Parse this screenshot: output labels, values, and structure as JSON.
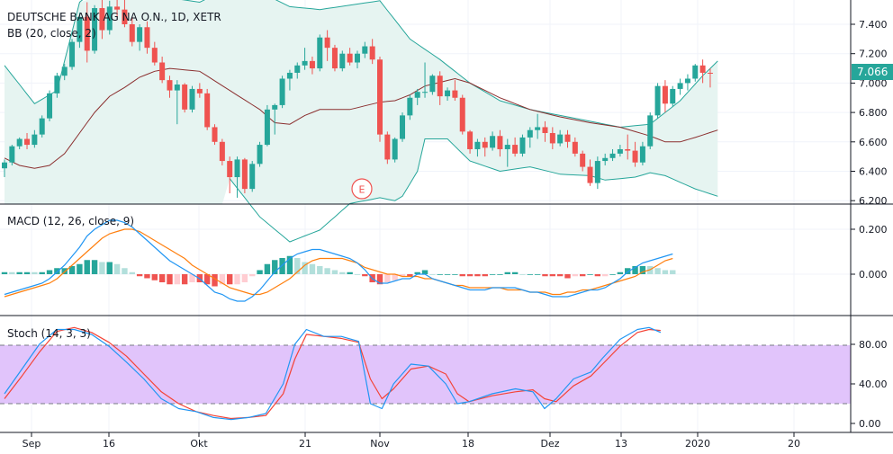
{
  "chart_data": {
    "type": "candlestick",
    "header": {
      "symbol_line": "DEUTSCHE BANK AG NA O.N., 1D, XETR",
      "bb_label": "BB (20, close, 2)",
      "macd_label": "MACD (12, 26, close, 9)",
      "stoch_label": "Stoch (14, 3, 3)"
    },
    "last_price_label": "7.066",
    "event_marker": "E",
    "x_ticks": [
      "Sep",
      "16",
      "Okt",
      "21",
      "Nov",
      "18",
      "Dez",
      "13",
      "2020",
      "20"
    ],
    "price_axis": {
      "ticks": [
        "7.400",
        "7.200",
        "7.000",
        "6.800",
        "6.600",
        "6.400",
        "6.200"
      ],
      "range": [
        6.2,
        7.65
      ]
    },
    "macd_axis": {
      "ticks": [
        "0.200",
        "0.000"
      ],
      "range": [
        -0.14,
        0.28
      ]
    },
    "stoch_axis": {
      "ticks": [
        "80.00",
        "40.00",
        "0.00"
      ],
      "range": [
        -5,
        105
      ],
      "band": [
        20,
        80
      ]
    },
    "colors": {
      "up": "#26a69a",
      "down": "#ef5350",
      "bb_fill": "#e6f4f1",
      "bb_band": "#26a69a",
      "bb_basis": "#8b2f2f",
      "macd": "#2196f3",
      "signal": "#ff7f0e",
      "hist_up_strong": "#26a69a",
      "hist_up_weak": "#b2dfdb",
      "hist_dn_strong": "#ef5350",
      "hist_dn_weak": "#ffcdd2",
      "stoch_k": "#2196f3",
      "stoch_d": "#f44336",
      "stoch_band": "#e1c4fb",
      "price_label_bg": "#26a69a"
    },
    "candles": [
      {
        "o": 6.42,
        "h": 6.48,
        "l": 6.36,
        "c": 6.46
      },
      {
        "o": 6.46,
        "h": 6.58,
        "l": 6.44,
        "c": 6.57
      },
      {
        "o": 6.57,
        "h": 6.63,
        "l": 6.55,
        "c": 6.62
      },
      {
        "o": 6.62,
        "h": 6.66,
        "l": 6.55,
        "c": 6.58
      },
      {
        "o": 6.58,
        "h": 6.68,
        "l": 6.56,
        "c": 6.65
      },
      {
        "o": 6.65,
        "h": 6.78,
        "l": 6.63,
        "c": 6.76
      },
      {
        "o": 6.76,
        "h": 6.95,
        "l": 6.74,
        "c": 6.93
      },
      {
        "o": 6.93,
        "h": 7.07,
        "l": 6.9,
        "c": 7.05
      },
      {
        "o": 7.05,
        "h": 7.13,
        "l": 7.02,
        "c": 7.11
      },
      {
        "o": 7.11,
        "h": 7.3,
        "l": 7.09,
        "c": 7.28
      },
      {
        "o": 7.28,
        "h": 7.48,
        "l": 7.24,
        "c": 7.45
      },
      {
        "o": 7.45,
        "h": 7.55,
        "l": 7.14,
        "c": 7.22
      },
      {
        "o": 7.22,
        "h": 7.53,
        "l": 7.2,
        "c": 7.51
      },
      {
        "o": 7.51,
        "h": 7.58,
        "l": 7.3,
        "c": 7.36
      },
      {
        "o": 7.36,
        "h": 7.56,
        "l": 7.33,
        "c": 7.52
      },
      {
        "o": 7.52,
        "h": 7.62,
        "l": 7.45,
        "c": 7.5
      },
      {
        "o": 7.5,
        "h": 7.6,
        "l": 7.38,
        "c": 7.4
      },
      {
        "o": 7.4,
        "h": 7.45,
        "l": 7.25,
        "c": 7.28
      },
      {
        "o": 7.28,
        "h": 7.4,
        "l": 7.22,
        "c": 7.38
      },
      {
        "o": 7.38,
        "h": 7.42,
        "l": 7.2,
        "c": 7.24
      },
      {
        "o": 7.24,
        "h": 7.28,
        "l": 7.12,
        "c": 7.14
      },
      {
        "o": 7.14,
        "h": 7.18,
        "l": 7.0,
        "c": 7.02
      },
      {
        "o": 7.02,
        "h": 7.05,
        "l": 6.9,
        "c": 6.95
      },
      {
        "o": 6.95,
        "h": 7.02,
        "l": 6.72,
        "c": 6.99
      },
      {
        "o": 6.99,
        "h": 7.0,
        "l": 6.8,
        "c": 6.82
      },
      {
        "o": 6.82,
        "h": 6.98,
        "l": 6.8,
        "c": 6.96
      },
      {
        "o": 6.96,
        "h": 7.0,
        "l": 6.9,
        "c": 6.93
      },
      {
        "o": 6.93,
        "h": 6.96,
        "l": 6.68,
        "c": 6.7
      },
      {
        "o": 6.7,
        "h": 6.72,
        "l": 6.58,
        "c": 6.6
      },
      {
        "o": 6.6,
        "h": 6.62,
        "l": 6.44,
        "c": 6.47
      },
      {
        "o": 6.47,
        "h": 6.5,
        "l": 6.25,
        "c": 6.36
      },
      {
        "o": 6.36,
        "h": 6.5,
        "l": 6.22,
        "c": 6.48
      },
      {
        "o": 6.48,
        "h": 6.49,
        "l": 6.25,
        "c": 6.28
      },
      {
        "o": 6.28,
        "h": 6.47,
        "l": 6.26,
        "c": 6.45
      },
      {
        "o": 6.45,
        "h": 6.6,
        "l": 6.43,
        "c": 6.58
      },
      {
        "o": 6.58,
        "h": 6.85,
        "l": 6.57,
        "c": 6.82
      },
      {
        "o": 6.82,
        "h": 6.86,
        "l": 6.65,
        "c": 6.85
      },
      {
        "o": 6.85,
        "h": 7.05,
        "l": 6.83,
        "c": 7.03
      },
      {
        "o": 7.03,
        "h": 7.09,
        "l": 6.95,
        "c": 7.07
      },
      {
        "o": 7.07,
        "h": 7.14,
        "l": 7.03,
        "c": 7.12
      },
      {
        "o": 7.12,
        "h": 7.24,
        "l": 7.09,
        "c": 7.15
      },
      {
        "o": 7.15,
        "h": 7.18,
        "l": 7.06,
        "c": 7.1
      },
      {
        "o": 7.1,
        "h": 7.33,
        "l": 7.08,
        "c": 7.31
      },
      {
        "o": 7.31,
        "h": 7.36,
        "l": 7.15,
        "c": 7.24
      },
      {
        "o": 7.24,
        "h": 7.26,
        "l": 7.08,
        "c": 7.1
      },
      {
        "o": 7.1,
        "h": 7.22,
        "l": 7.08,
        "c": 7.2
      },
      {
        "o": 7.2,
        "h": 7.24,
        "l": 7.12,
        "c": 7.14
      },
      {
        "o": 7.14,
        "h": 7.22,
        "l": 7.1,
        "c": 7.2
      },
      {
        "o": 7.2,
        "h": 7.28,
        "l": 7.17,
        "c": 7.25
      },
      {
        "o": 7.25,
        "h": 7.3,
        "l": 7.13,
        "c": 7.16
      },
      {
        "o": 7.16,
        "h": 7.18,
        "l": 6.6,
        "c": 6.65
      },
      {
        "o": 6.65,
        "h": 6.67,
        "l": 6.45,
        "c": 6.48
      },
      {
        "o": 6.48,
        "h": 6.63,
        "l": 6.46,
        "c": 6.62
      },
      {
        "o": 6.62,
        "h": 6.8,
        "l": 6.6,
        "c": 6.78
      },
      {
        "o": 6.78,
        "h": 6.92,
        "l": 6.75,
        "c": 6.9
      },
      {
        "o": 6.9,
        "h": 6.96,
        "l": 6.85,
        "c": 6.94
      },
      {
        "o": 6.94,
        "h": 7.14,
        "l": 6.9,
        "c": 6.94
      },
      {
        "o": 6.94,
        "h": 7.06,
        "l": 6.92,
        "c": 7.05
      },
      {
        "o": 7.05,
        "h": 7.08,
        "l": 6.85,
        "c": 6.91
      },
      {
        "o": 6.91,
        "h": 6.97,
        "l": 6.88,
        "c": 6.95
      },
      {
        "o": 6.95,
        "h": 7.02,
        "l": 6.88,
        "c": 6.9
      },
      {
        "o": 6.9,
        "h": 6.92,
        "l": 6.65,
        "c": 6.67
      },
      {
        "o": 6.67,
        "h": 6.68,
        "l": 6.52,
        "c": 6.55
      },
      {
        "o": 6.55,
        "h": 6.62,
        "l": 6.5,
        "c": 6.6
      },
      {
        "o": 6.6,
        "h": 6.63,
        "l": 6.5,
        "c": 6.56
      },
      {
        "o": 6.56,
        "h": 6.67,
        "l": 6.54,
        "c": 6.64
      },
      {
        "o": 6.64,
        "h": 6.68,
        "l": 6.5,
        "c": 6.55
      },
      {
        "o": 6.55,
        "h": 6.62,
        "l": 6.43,
        "c": 6.58
      },
      {
        "o": 6.58,
        "h": 6.63,
        "l": 6.5,
        "c": 6.52
      },
      {
        "o": 6.52,
        "h": 6.65,
        "l": 6.5,
        "c": 6.63
      },
      {
        "o": 6.63,
        "h": 6.7,
        "l": 6.56,
        "c": 6.68
      },
      {
        "o": 6.68,
        "h": 6.79,
        "l": 6.62,
        "c": 6.7
      },
      {
        "o": 6.7,
        "h": 6.74,
        "l": 6.6,
        "c": 6.66
      },
      {
        "o": 6.66,
        "h": 6.7,
        "l": 6.55,
        "c": 6.59
      },
      {
        "o": 6.59,
        "h": 6.68,
        "l": 6.57,
        "c": 6.65
      },
      {
        "o": 6.65,
        "h": 6.68,
        "l": 6.56,
        "c": 6.6
      },
      {
        "o": 6.6,
        "h": 6.63,
        "l": 6.5,
        "c": 6.52
      },
      {
        "o": 6.52,
        "h": 6.54,
        "l": 6.4,
        "c": 6.43
      },
      {
        "o": 6.43,
        "h": 6.48,
        "l": 6.3,
        "c": 6.32
      },
      {
        "o": 6.32,
        "h": 6.5,
        "l": 6.28,
        "c": 6.47
      },
      {
        "o": 6.47,
        "h": 6.52,
        "l": 6.44,
        "c": 6.49
      },
      {
        "o": 6.49,
        "h": 6.55,
        "l": 6.47,
        "c": 6.52
      },
      {
        "o": 6.52,
        "h": 6.58,
        "l": 6.5,
        "c": 6.55
      },
      {
        "o": 6.55,
        "h": 6.65,
        "l": 6.48,
        "c": 6.54
      },
      {
        "o": 6.54,
        "h": 6.6,
        "l": 6.43,
        "c": 6.46
      },
      {
        "o": 6.46,
        "h": 6.6,
        "l": 6.44,
        "c": 6.57
      },
      {
        "o": 6.57,
        "h": 6.8,
        "l": 6.55,
        "c": 6.78
      },
      {
        "o": 6.78,
        "h": 7.0,
        "l": 6.76,
        "c": 6.98
      },
      {
        "o": 6.98,
        "h": 7.02,
        "l": 6.8,
        "c": 6.86
      },
      {
        "o": 6.86,
        "h": 6.98,
        "l": 6.84,
        "c": 6.96
      },
      {
        "o": 6.96,
        "h": 7.03,
        "l": 6.92,
        "c": 7.0
      },
      {
        "o": 7.0,
        "h": 7.06,
        "l": 6.95,
        "c": 7.03
      },
      {
        "o": 7.03,
        "h": 7.13,
        "l": 7.01,
        "c": 7.12
      },
      {
        "o": 7.12,
        "h": 7.16,
        "l": 7.0,
        "c": 7.07
      },
      {
        "o": 7.07,
        "h": 7.1,
        "l": 6.97,
        "c": 7.066
      }
    ],
    "bb_upper": [
      [
        0,
        7.12
      ],
      [
        4,
        6.86
      ],
      [
        7,
        6.95
      ],
      [
        10,
        7.55
      ],
      [
        14,
        7.72
      ],
      [
        18,
        7.68
      ],
      [
        22,
        7.58
      ],
      [
        26,
        7.55
      ],
      [
        30,
        7.65
      ],
      [
        34,
        7.62
      ],
      [
        38,
        7.52
      ],
      [
        42,
        7.5
      ],
      [
        46,
        7.53
      ],
      [
        50,
        7.56
      ],
      [
        54,
        7.3
      ],
      [
        58,
        7.16
      ],
      [
        62,
        7.0
      ],
      [
        66,
        6.88
      ],
      [
        70,
        6.82
      ],
      [
        74,
        6.78
      ],
      [
        78,
        6.74
      ],
      [
        82,
        6.7
      ],
      [
        86,
        6.72
      ],
      [
        90,
        6.88
      ],
      [
        93,
        7.05
      ],
      [
        95,
        7.15
      ]
    ],
    "bb_lower": [
      [
        30,
        6.35
      ],
      [
        34,
        6.09
      ],
      [
        38,
        5.92
      ],
      [
        42,
        6.0
      ],
      [
        46,
        6.18
      ],
      [
        50,
        6.22
      ],
      [
        52,
        6.2
      ],
      [
        53,
        6.23
      ],
      [
        55,
        6.4
      ],
      [
        56,
        6.62
      ],
      [
        59,
        6.62
      ],
      [
        62,
        6.47
      ],
      [
        66,
        6.4
      ],
      [
        70,
        6.43
      ],
      [
        74,
        6.38
      ],
      [
        78,
        6.37
      ],
      [
        80,
        6.34
      ],
      [
        84,
        6.36
      ],
      [
        86,
        6.39
      ],
      [
        88,
        6.37
      ],
      [
        92,
        6.28
      ],
      [
        95,
        6.23
      ]
    ],
    "bb_basis": [
      [
        0,
        6.49
      ],
      [
        2,
        6.44
      ],
      [
        4,
        6.42
      ],
      [
        6,
        6.44
      ],
      [
        8,
        6.52
      ],
      [
        10,
        6.66
      ],
      [
        12,
        6.8
      ],
      [
        14,
        6.91
      ],
      [
        16,
        6.97
      ],
      [
        18,
        7.04
      ],
      [
        20,
        7.08
      ],
      [
        22,
        7.1
      ],
      [
        26,
        7.08
      ],
      [
        30,
        6.95
      ],
      [
        34,
        6.82
      ],
      [
        36,
        6.73
      ],
      [
        38,
        6.72
      ],
      [
        40,
        6.78
      ],
      [
        42,
        6.82
      ],
      [
        46,
        6.82
      ],
      [
        50,
        6.87
      ],
      [
        52,
        6.88
      ],
      [
        54,
        6.92
      ],
      [
        56,
        6.98
      ],
      [
        60,
        7.03
      ],
      [
        62,
        7.0
      ],
      [
        66,
        6.9
      ],
      [
        70,
        6.82
      ],
      [
        74,
        6.77
      ],
      [
        78,
        6.73
      ],
      [
        82,
        6.7
      ],
      [
        86,
        6.64
      ],
      [
        88,
        6.6
      ],
      [
        90,
        6.6
      ],
      [
        92,
        6.63
      ],
      [
        95,
        6.68
      ]
    ],
    "macd_line": [
      -0.09,
      -0.08,
      -0.07,
      -0.06,
      -0.05,
      -0.04,
      -0.02,
      0.01,
      0.04,
      0.08,
      0.12,
      0.17,
      0.2,
      0.22,
      0.24,
      0.24,
      0.23,
      0.21,
      0.18,
      0.15,
      0.12,
      0.09,
      0.06,
      0.04,
      0.02,
      0.0,
      -0.02,
      -0.05,
      -0.08,
      -0.09,
      -0.11,
      -0.12,
      -0.12,
      -0.1,
      -0.07,
      -0.03,
      0.01,
      0.04,
      0.07,
      0.09,
      0.1,
      0.11,
      0.11,
      0.1,
      0.09,
      0.08,
      0.07,
      0.05,
      0.02,
      -0.02,
      -0.04,
      -0.04,
      -0.03,
      -0.02,
      -0.02,
      0.0,
      0.0,
      -0.02,
      -0.03,
      -0.04,
      -0.05,
      -0.06,
      -0.07,
      -0.07,
      -0.07,
      -0.06,
      -0.06,
      -0.06,
      -0.06,
      -0.07,
      -0.08,
      -0.08,
      -0.09,
      -0.1,
      -0.1,
      -0.1,
      -0.09,
      -0.08,
      -0.07,
      -0.07,
      -0.06,
      -0.04,
      -0.02,
      0.01,
      0.03,
      0.05,
      0.06,
      0.07,
      0.08,
      0.09
    ],
    "signal_line": [
      -0.1,
      -0.09,
      -0.08,
      -0.07,
      -0.06,
      -0.05,
      -0.04,
      -0.02,
      0.01,
      0.04,
      0.07,
      0.1,
      0.13,
      0.16,
      0.18,
      0.19,
      0.2,
      0.2,
      0.19,
      0.17,
      0.15,
      0.13,
      0.11,
      0.09,
      0.07,
      0.04,
      0.02,
      0.0,
      -0.02,
      -0.04,
      -0.06,
      -0.07,
      -0.08,
      -0.09,
      -0.09,
      -0.08,
      -0.06,
      -0.04,
      -0.02,
      0.01,
      0.04,
      0.06,
      0.07,
      0.07,
      0.07,
      0.07,
      0.06,
      0.05,
      0.03,
      0.02,
      0.01,
      0.0,
      0.0,
      -0.01,
      -0.01,
      -0.01,
      -0.02,
      -0.02,
      -0.03,
      -0.04,
      -0.05,
      -0.05,
      -0.06,
      -0.06,
      -0.06,
      -0.06,
      -0.06,
      -0.07,
      -0.07,
      -0.07,
      -0.08,
      -0.08,
      -0.08,
      -0.09,
      -0.09,
      -0.08,
      -0.08,
      -0.07,
      -0.07,
      -0.06,
      -0.05,
      -0.04,
      -0.03,
      -0.02,
      -0.01,
      0.01,
      0.02,
      0.04,
      0.06,
      0.07
    ],
    "stoch_k": [
      [
        0,
        30
      ],
      [
        3,
        55
      ],
      [
        6,
        80
      ],
      [
        9,
        95
      ],
      [
        12,
        95
      ],
      [
        15,
        90
      ],
      [
        18,
        78
      ],
      [
        21,
        62
      ],
      [
        24,
        45
      ],
      [
        27,
        25
      ],
      [
        30,
        15
      ],
      [
        33,
        12
      ],
      [
        36,
        6
      ],
      [
        39,
        4
      ],
      [
        42,
        6
      ],
      [
        45,
        10
      ],
      [
        48,
        40
      ],
      [
        50,
        80
      ],
      [
        52,
        95
      ],
      [
        55,
        88
      ],
      [
        58,
        88
      ],
      [
        61,
        83
      ],
      [
        63,
        20
      ],
      [
        65,
        15
      ],
      [
        67,
        40
      ],
      [
        70,
        60
      ],
      [
        73,
        58
      ],
      [
        76,
        40
      ],
      [
        78,
        20
      ],
      [
        80,
        22
      ],
      [
        84,
        30
      ],
      [
        88,
        35
      ],
      [
        91,
        32
      ],
      [
        93,
        15
      ],
      [
        95,
        25
      ],
      [
        98,
        45
      ],
      [
        101,
        52
      ],
      [
        103,
        66
      ],
      [
        106,
        85
      ],
      [
        109,
        95
      ],
      [
        111,
        97
      ],
      [
        113,
        92
      ]
    ],
    "stoch_d": [
      [
        0,
        25
      ],
      [
        3,
        48
      ],
      [
        6,
        72
      ],
      [
        9,
        93
      ],
      [
        12,
        97
      ],
      [
        15,
        92
      ],
      [
        18,
        82
      ],
      [
        21,
        68
      ],
      [
        24,
        50
      ],
      [
        27,
        32
      ],
      [
        30,
        20
      ],
      [
        33,
        12
      ],
      [
        36,
        8
      ],
      [
        39,
        5
      ],
      [
        42,
        6
      ],
      [
        45,
        8
      ],
      [
        48,
        30
      ],
      [
        50,
        65
      ],
      [
        52,
        90
      ],
      [
        55,
        88
      ],
      [
        58,
        86
      ],
      [
        61,
        82
      ],
      [
        63,
        45
      ],
      [
        65,
        25
      ],
      [
        67,
        35
      ],
      [
        70,
        55
      ],
      [
        73,
        58
      ],
      [
        76,
        50
      ],
      [
        78,
        30
      ],
      [
        80,
        22
      ],
      [
        84,
        28
      ],
      [
        88,
        32
      ],
      [
        91,
        34
      ],
      [
        93,
        25
      ],
      [
        95,
        22
      ],
      [
        98,
        38
      ],
      [
        101,
        48
      ],
      [
        103,
        60
      ],
      [
        106,
        78
      ],
      [
        109,
        92
      ],
      [
        111,
        95
      ],
      [
        113,
        94
      ]
    ]
  }
}
